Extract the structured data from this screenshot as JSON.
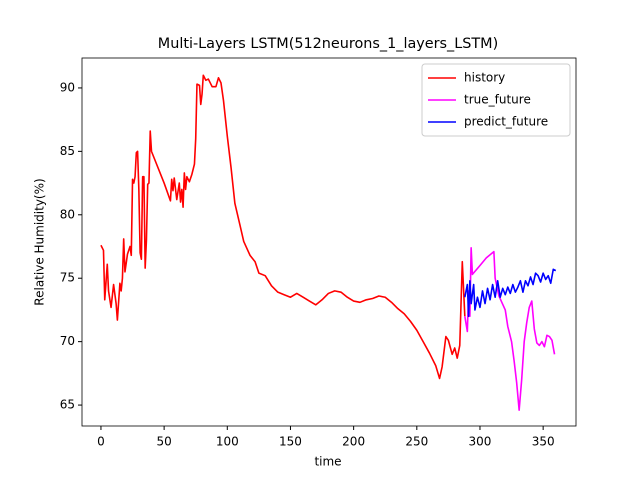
{
  "chart_data": {
    "type": "line",
    "title": "Multi-Layers LSTM(512neurons_1_layers_LSTM)",
    "x_label": "time",
    "y_label": "Relative Humidity(%)",
    "xlim": [
      -15,
      376
    ],
    "ylim": [
      63.35,
      92.36
    ],
    "xticks": [
      0,
      50,
      100,
      150,
      200,
      250,
      300,
      350
    ],
    "yticks": [
      65,
      70,
      75,
      80,
      85,
      90
    ],
    "legend": "upper right",
    "series": [
      {
        "name": "history",
        "color": "#ff0000",
        "x": [
          0,
          2,
          3,
          5,
          6,
          8,
          10,
          12,
          13,
          15,
          16,
          17,
          18,
          19,
          21,
          23,
          24,
          25,
          26,
          27,
          28,
          29,
          30,
          31,
          32,
          33,
          34,
          35,
          36,
          37,
          38,
          39,
          40,
          50,
          55,
          56,
          57,
          58,
          60,
          62,
          63,
          64,
          65,
          66,
          67,
          68,
          70,
          72,
          74,
          75,
          76,
          78,
          79,
          80,
          81,
          83,
          85,
          88,
          91,
          93,
          95,
          97,
          100,
          103,
          106,
          110,
          113,
          118,
          122,
          125,
          130,
          135,
          140,
          145,
          150,
          155,
          160,
          165,
          170,
          175,
          180,
          185,
          190,
          195,
          200,
          205,
          210,
          215,
          220,
          225,
          230,
          235,
          240,
          245,
          250,
          255,
          260,
          265,
          268,
          270,
          273,
          275,
          278,
          280,
          282,
          284,
          286,
          288
        ],
        "values": [
          77.6,
          77.2,
          73.3,
          76.1,
          74,
          72.7,
          74.5,
          73,
          71.7,
          74.6,
          74,
          75,
          78.1,
          75.5,
          76.9,
          77.5,
          76.8,
          82.8,
          82.5,
          83,
          84.9,
          85,
          82,
          77,
          76.5,
          83,
          83,
          75.8,
          78,
          82.4,
          82.5,
          86.6,
          85,
          82.5,
          81.1,
          82.8,
          81.9,
          82.9,
          81.2,
          82.5,
          81,
          82,
          80.6,
          83.3,
          82,
          83,
          82.6,
          83.2,
          84,
          86,
          90.3,
          90.2,
          88.7,
          89.5,
          91,
          90.6,
          90.7,
          90.1,
          90.1,
          90.8,
          90.4,
          89,
          86.2,
          83.7,
          80.9,
          79.2,
          77.9,
          76.8,
          76.3,
          75.4,
          75.2,
          74.4,
          73.9,
          73.7,
          73.5,
          73.8,
          73.5,
          73.2,
          72.9,
          73.3,
          73.8,
          74,
          73.9,
          73.5,
          73.2,
          73.1,
          73.3,
          73.4,
          73.6,
          73.5,
          73.1,
          72.6,
          72.2,
          71.6,
          70.9,
          70,
          69.1,
          68.1,
          67.1,
          68,
          70.4,
          70.1,
          69,
          69.5,
          68.7,
          69.7,
          76.3,
          72
        ]
      },
      {
        "name": "true_future",
        "color": "#ff00ff",
        "x": [
          288,
          290,
          291,
          292,
          293,
          294,
          300,
          305,
          311,
          312,
          315,
          320,
          322,
          325,
          327,
          329,
          331,
          333,
          335,
          337,
          339,
          341,
          343,
          345,
          347,
          349,
          351,
          353,
          355,
          357,
          359
        ],
        "values": [
          72,
          70.8,
          74,
          72,
          77.4,
          75.3,
          76,
          76.6,
          77.1,
          75,
          73.6,
          72.5,
          71.2,
          70,
          68.5,
          66.8,
          64.6,
          67,
          70,
          71.5,
          72.7,
          73.2,
          71,
          69.9,
          69.7,
          70,
          69.6,
          70.5,
          70.4,
          70.1,
          69
        ]
      },
      {
        "name": "predict_future",
        "color": "#0000ff",
        "x": [
          288,
          290,
          291,
          292,
          293,
          295,
          296,
          298,
          300,
          302,
          304,
          306,
          308,
          310,
          312,
          314,
          316,
          318,
          320,
          322,
          324,
          326,
          328,
          330,
          332,
          334,
          336,
          338,
          340,
          342,
          344,
          346,
          348,
          350,
          352,
          354,
          356,
          358,
          360
        ],
        "values": [
          73.5,
          74.5,
          72,
          74.8,
          73,
          74.5,
          72.5,
          73.5,
          72.7,
          74,
          73,
          74.2,
          73.3,
          74.5,
          73.5,
          74.8,
          73.5,
          74.2,
          73.7,
          74.3,
          73.8,
          74.5,
          73.9,
          74.3,
          74.8,
          73.9,
          74.8,
          74.4,
          75.1,
          74.5,
          75.4,
          75.2,
          74.7,
          75.4,
          74.9,
          75.2,
          74.6,
          75.7,
          75.6
        ]
      }
    ]
  }
}
